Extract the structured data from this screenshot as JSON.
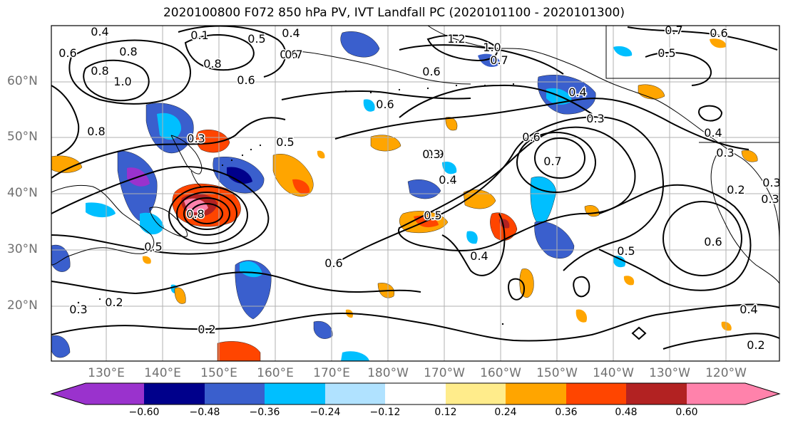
{
  "title": "2020100800 F072 850 hPa PV, IVT Landfall PC (2020101100 - 2020101300)",
  "lat_labels": [
    "60°N",
    "50°N",
    "40°N",
    "30°N",
    "20°N"
  ],
  "lon_labels": [
    "130°E",
    "140°E",
    "150°E",
    "160°E",
    "170°E",
    "180°W",
    "170°W",
    "160°W",
    "150°W",
    "140°W",
    "130°W",
    "120°W"
  ],
  "colorbar": {
    "ticks": [
      "−0.60",
      "−0.48",
      "−0.36",
      "−0.24",
      "−0.12",
      "0.12",
      "0.24",
      "0.36",
      "0.48",
      "0.60"
    ],
    "colors": [
      "#9a32cd",
      "#00008b",
      "#3a5fcd",
      "#00bfff",
      "#b0e2ff",
      "#ffffff",
      "#ffec8b",
      "#ffa500",
      "#ff4500",
      "#b22222",
      "#ff82ab"
    ]
  },
  "contour_labels": [
    "0.4",
    "0.1",
    "0.5",
    "0.4",
    "1.2",
    "1.0",
    "0.8",
    "0.6",
    "0.5",
    "0.6",
    "0.6",
    "0.8",
    "1.0",
    "0.7",
    "0.8",
    "0.7",
    "0.6",
    "0.6",
    "0.7",
    "0.5",
    "0.6",
    "0.4",
    "0.3",
    "0.8",
    "0.9",
    "0.5",
    "0.3",
    "0.6",
    "0.3",
    "0.6",
    "0.7",
    "0.4",
    "0.3",
    "0.4",
    "0.5",
    "0.2",
    "0.3",
    "0.6",
    "0.8",
    "0.5",
    "0.4",
    "0.5",
    "0.6",
    "0.3",
    "0.2",
    "0.2",
    "0.3",
    "0.4",
    "0.2"
  ]
}
